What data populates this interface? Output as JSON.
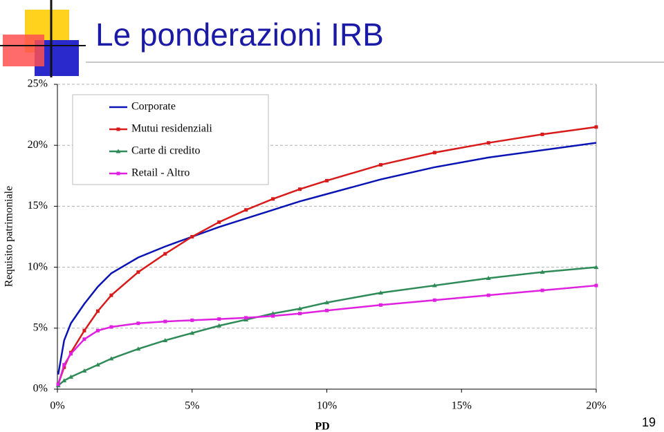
{
  "slide_title": "Le ponderazioni IRB",
  "page_number": "19",
  "chart_data": {
    "type": "line",
    "x_label": "PD",
    "y_label": "Requisito patrimoniale",
    "x": [
      0.03,
      0.25,
      0.5,
      1,
      1.5,
      2,
      3,
      4,
      5,
      6,
      7,
      8,
      9,
      10,
      12,
      14,
      16,
      18,
      20
    ],
    "series": [
      {
        "name": "Corporate",
        "color": "#0a14b4",
        "marker": "none",
        "values": [
          1.2,
          4.0,
          5.4,
          7.0,
          8.4,
          9.5,
          10.8,
          11.7,
          12.5,
          13.3,
          14.0,
          14.7,
          15.4,
          16.0,
          17.2,
          18.2,
          19.0,
          19.6,
          20.2
        ]
      },
      {
        "name": "Mutui residenziali",
        "color": "#d81a1a",
        "marker": "square",
        "values": [
          0.4,
          1.8,
          3.0,
          4.8,
          6.4,
          7.7,
          9.6,
          11.1,
          12.5,
          13.7,
          14.7,
          15.6,
          16.4,
          17.1,
          18.4,
          19.4,
          20.2,
          20.9,
          21.5
        ]
      },
      {
        "name": "Carte di credito",
        "color": "#2e8b57",
        "marker": "triangle",
        "values": [
          0.3,
          0.7,
          1.0,
          1.5,
          2.0,
          2.5,
          3.3,
          4.0,
          4.6,
          5.2,
          5.7,
          6.2,
          6.6,
          7.1,
          7.9,
          8.5,
          9.1,
          9.6,
          10.0
        ]
      },
      {
        "name": "Retail - Altro",
        "color": "#e020e0",
        "marker": "square",
        "values": [
          0.4,
          2.0,
          2.9,
          4.1,
          4.8,
          5.1,
          5.4,
          5.55,
          5.65,
          5.75,
          5.85,
          6.0,
          6.2,
          6.45,
          6.9,
          7.3,
          7.7,
          8.1,
          8.5
        ]
      }
    ],
    "xlim": [
      0,
      20
    ],
    "xticks": [
      {
        "value": 0,
        "label": "0%"
      },
      {
        "value": 5,
        "label": "5%"
      },
      {
        "value": 10,
        "label": "10%"
      },
      {
        "value": 15,
        "label": "15%"
      },
      {
        "value": 20,
        "label": "20%"
      }
    ],
    "ylim": [
      0,
      25
    ],
    "yticks": [
      {
        "value": 0,
        "label": "0%"
      },
      {
        "value": 5,
        "label": "5%"
      },
      {
        "value": 10,
        "label": "10%"
      },
      {
        "value": 15,
        "label": "15%"
      },
      {
        "value": 20,
        "label": "20%"
      },
      {
        "value": 25,
        "label": "25%"
      }
    ],
    "grid": true
  }
}
